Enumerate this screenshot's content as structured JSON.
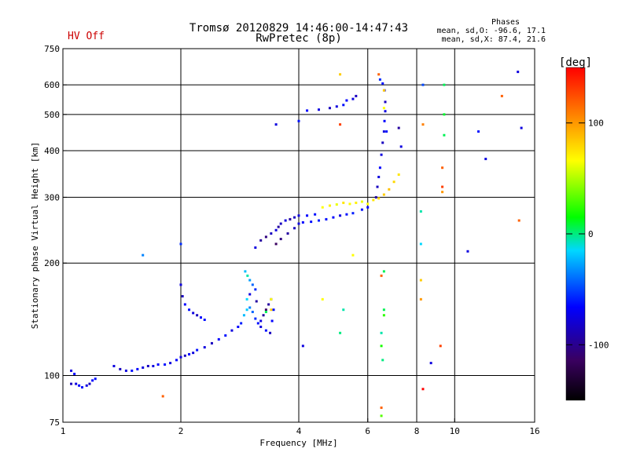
{
  "header": {
    "title": "Tromsø 20120829 14:46:00-14:47:43",
    "subtitle": "RwPretec (8p)",
    "status": "HV Off",
    "status_color": "#cc0000",
    "phases": {
      "heading": "Phases",
      "line_o": "mean, sd,O: -96.6, 17.1",
      "line_x": "mean, sd,X:  87.4, 21.6"
    }
  },
  "colorbar": {
    "unit": "[deg]",
    "ticks": [
      {
        "value": 100,
        "label": "100"
      },
      {
        "value": 0,
        "label": "0"
      },
      {
        "value": -100,
        "label": "-100"
      }
    ],
    "range": [
      -150,
      150
    ],
    "colors": [
      "#000000",
      "#3a0060",
      "#0000ff",
      "#00d8ff",
      "#00ff00",
      "#ffff00",
      "#ff8000",
      "#ff0000"
    ]
  },
  "chart_data": {
    "type": "scatter",
    "title": "Tromsø 20120829 14:46:00-14:47:43",
    "subtitle": "RwPretec (8p)",
    "xlabel": "Frequency [MHz]",
    "ylabel": "Stationary phase Virtual Height [km]",
    "x_scale": "log",
    "y_scale": "log",
    "xlim": [
      1,
      16
    ],
    "ylim": [
      75,
      750
    ],
    "x_ticks": [
      1,
      2,
      4,
      6,
      8,
      10,
      16
    ],
    "x_tick_labels": [
      "1",
      "2",
      "4",
      "6",
      "8",
      "10",
      "16"
    ],
    "y_ticks": [
      75,
      100,
      200,
      300,
      400,
      500,
      600,
      750
    ],
    "y_tick_labels": [
      "75",
      "100",
      "200",
      "300",
      "400",
      "500",
      "600",
      "750"
    ],
    "x_grid": [
      2,
      4,
      6,
      8,
      10
    ],
    "y_grid": [
      100,
      200,
      300,
      400,
      500,
      600
    ],
    "grid": true,
    "series": [
      {
        "color_scale": "phase",
        "points": [
          [
            1.05,
            95,
            -115
          ],
          [
            1.08,
            95,
            -110
          ],
          [
            1.1,
            94,
            -105
          ],
          [
            1.12,
            93,
            -100
          ],
          [
            1.15,
            94,
            -110
          ],
          [
            1.17,
            95,
            -115
          ],
          [
            1.19,
            97,
            -105
          ],
          [
            1.21,
            98,
            -100
          ],
          [
            1.05,
            103,
            -110
          ],
          [
            1.07,
            101,
            -105
          ],
          [
            1.35,
            106,
            -110
          ],
          [
            1.4,
            104,
            -115
          ],
          [
            1.45,
            103,
            -110
          ],
          [
            1.5,
            103,
            -100
          ],
          [
            1.55,
            104,
            -105
          ],
          [
            1.6,
            105,
            -110
          ],
          [
            1.65,
            106,
            -115
          ],
          [
            1.7,
            106,
            -110
          ],
          [
            1.75,
            107,
            -105
          ],
          [
            1.82,
            107,
            -100
          ],
          [
            1.88,
            108,
            -110
          ],
          [
            1.95,
            110,
            -105
          ],
          [
            2.0,
            112,
            -110
          ],
          [
            2.05,
            113,
            -115
          ],
          [
            2.1,
            114,
            -105
          ],
          [
            2.15,
            115,
            -110
          ],
          [
            2.2,
            117,
            -100
          ],
          [
            2.3,
            119,
            -110
          ],
          [
            2.4,
            122,
            -115
          ],
          [
            2.5,
            125,
            -105
          ],
          [
            2.6,
            128,
            -100
          ],
          [
            2.7,
            132,
            -110
          ],
          [
            2.8,
            135,
            -105
          ],
          [
            2.85,
            138,
            -95
          ],
          [
            2.0,
            175,
            -110
          ],
          [
            2.02,
            163,
            -115
          ],
          [
            2.05,
            155,
            -105
          ],
          [
            2.1,
            150,
            -100
          ],
          [
            2.15,
            147,
            -110
          ],
          [
            2.2,
            145,
            -115
          ],
          [
            2.25,
            143,
            -105
          ],
          [
            2.3,
            141,
            -100
          ],
          [
            1.6,
            210,
            -60
          ],
          [
            2.0,
            225,
            -90
          ],
          [
            2.9,
            145,
            -40
          ],
          [
            2.95,
            150,
            -35
          ],
          [
            3.0,
            152,
            -60
          ],
          [
            3.05,
            148,
            -70
          ],
          [
            3.1,
            142,
            -90
          ],
          [
            3.15,
            138,
            -100
          ],
          [
            3.2,
            140,
            -110
          ],
          [
            3.25,
            145,
            -120
          ],
          [
            3.3,
            150,
            -130
          ],
          [
            3.35,
            155,
            -120
          ],
          [
            3.4,
            160,
            -110
          ],
          [
            3.45,
            150,
            -100
          ],
          [
            2.92,
            190,
            -40
          ],
          [
            2.96,
            185,
            -20
          ],
          [
            3.0,
            180,
            -50
          ],
          [
            3.05,
            175,
            -70
          ],
          [
            3.1,
            170,
            -90
          ],
          [
            3.0,
            165,
            -110
          ],
          [
            2.95,
            160,
            -30
          ],
          [
            3.12,
            158,
            -120
          ],
          [
            3.2,
            135,
            -110
          ],
          [
            3.3,
            132,
            -100
          ],
          [
            3.38,
            130,
            -115
          ],
          [
            3.42,
            140,
            -105
          ],
          [
            3.1,
            220,
            -110
          ],
          [
            3.2,
            230,
            -120
          ],
          [
            3.3,
            235,
            -125
          ],
          [
            3.4,
            240,
            -115
          ],
          [
            3.5,
            245,
            -110
          ],
          [
            3.55,
            250,
            -120
          ],
          [
            3.6,
            255,
            -115
          ],
          [
            3.7,
            260,
            -110
          ],
          [
            3.8,
            262,
            -120
          ],
          [
            3.9,
            265,
            -115
          ],
          [
            4.0,
            268,
            -110
          ],
          [
            4.2,
            268,
            -105
          ],
          [
            4.4,
            270,
            -100
          ],
          [
            3.5,
            225,
            -130
          ],
          [
            3.6,
            232,
            -125
          ],
          [
            3.75,
            240,
            -120
          ],
          [
            3.9,
            248,
            -115
          ],
          [
            4.0,
            255,
            -110
          ],
          [
            4.1,
            257,
            -105
          ],
          [
            4.3,
            258,
            -100
          ],
          [
            4.5,
            260,
            -95
          ],
          [
            4.7,
            262,
            -100
          ],
          [
            4.9,
            265,
            -105
          ],
          [
            5.1,
            268,
            -110
          ],
          [
            5.3,
            270,
            -100
          ],
          [
            5.5,
            272,
            -95
          ],
          [
            5.8,
            278,
            -100
          ],
          [
            6.0,
            282,
            -105
          ],
          [
            4.6,
            282,
            60
          ],
          [
            4.8,
            285,
            65
          ],
          [
            5.0,
            287,
            55
          ],
          [
            5.2,
            290,
            70
          ],
          [
            5.4,
            288,
            60
          ],
          [
            5.6,
            290,
            65
          ],
          [
            5.8,
            292,
            55
          ],
          [
            6.0,
            288,
            60
          ],
          [
            6.2,
            295,
            70
          ],
          [
            6.4,
            298,
            75
          ],
          [
            6.6,
            305,
            80
          ],
          [
            6.8,
            315,
            85
          ],
          [
            7.0,
            330,
            75
          ],
          [
            7.2,
            345,
            70
          ],
          [
            6.3,
            300,
            -120
          ],
          [
            6.35,
            320,
            -115
          ],
          [
            6.4,
            340,
            -110
          ],
          [
            6.45,
            360,
            -105
          ],
          [
            6.5,
            390,
            -110
          ],
          [
            6.55,
            420,
            -115
          ],
          [
            6.6,
            450,
            -110
          ],
          [
            6.62,
            480,
            -105
          ],
          [
            6.65,
            510,
            -110
          ],
          [
            6.65,
            540,
            -115
          ],
          [
            6.62,
            580,
            -110
          ],
          [
            6.55,
            605,
            -100
          ],
          [
            6.45,
            620,
            -90
          ],
          [
            4.5,
            515,
            -110
          ],
          [
            4.8,
            520,
            -115
          ],
          [
            5.0,
            525,
            -110
          ],
          [
            5.2,
            530,
            -100
          ],
          [
            5.3,
            545,
            -105
          ],
          [
            5.5,
            550,
            -110
          ],
          [
            5.6,
            560,
            -115
          ],
          [
            4.2,
            512,
            -105
          ],
          [
            3.5,
            470,
            -110
          ],
          [
            4.0,
            480,
            -100
          ],
          [
            5.1,
            640,
            80
          ],
          [
            5.1,
            470,
            130
          ],
          [
            6.4,
            640,
            120
          ],
          [
            6.6,
            580,
            80
          ],
          [
            6.6,
            520,
            60
          ],
          [
            6.7,
            450,
            -100
          ],
          [
            7.2,
            460,
            -120
          ],
          [
            7.3,
            410,
            -110
          ],
          [
            8.3,
            600,
            -80
          ],
          [
            8.3,
            470,
            110
          ],
          [
            9.4,
            600,
            -10
          ],
          [
            9.4,
            500,
            -5
          ],
          [
            9.4,
            440,
            -10
          ],
          [
            11.5,
            450,
            -100
          ],
          [
            12.0,
            380,
            -110
          ],
          [
            13.2,
            560,
            120
          ],
          [
            14.5,
            650,
            -110
          ],
          [
            14.8,
            460,
            -110
          ],
          [
            8.2,
            275,
            -20
          ],
          [
            9.3,
            360,
            120
          ],
          [
            9.3,
            320,
            130
          ],
          [
            9.3,
            310,
            100
          ],
          [
            10.8,
            215,
            -110
          ],
          [
            8.2,
            225,
            -30
          ],
          [
            14.6,
            260,
            120
          ],
          [
            3.4,
            160,
            60
          ],
          [
            3.4,
            150,
            80
          ],
          [
            3.3,
            148,
            -10
          ],
          [
            4.6,
            160,
            60
          ],
          [
            5.2,
            150,
            -20
          ],
          [
            5.1,
            130,
            -15
          ],
          [
            6.6,
            190,
            -10
          ],
          [
            6.5,
            185,
            120
          ],
          [
            6.6,
            150,
            -10
          ],
          [
            6.6,
            145,
            10
          ],
          [
            6.5,
            130,
            -20
          ],
          [
            6.55,
            110,
            -15
          ],
          [
            6.5,
            120,
            5
          ],
          [
            8.2,
            180,
            80
          ],
          [
            8.2,
            160,
            100
          ],
          [
            8.3,
            92,
            150
          ],
          [
            1.8,
            88,
            120
          ],
          [
            6.5,
            82,
            120
          ],
          [
            6.5,
            78,
            20
          ],
          [
            9.2,
            120,
            130
          ],
          [
            8.7,
            108,
            -110
          ],
          [
            4.1,
            120,
            -110
          ],
          [
            5.5,
            210,
            60
          ]
        ]
      }
    ]
  }
}
